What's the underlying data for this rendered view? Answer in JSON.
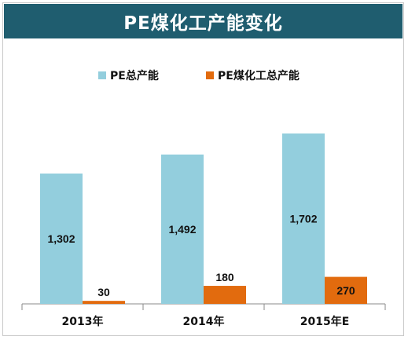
{
  "title": "PE煤化工产能变化",
  "colors": {
    "title_bg": "#1f5d6f",
    "series1": "#93cedd",
    "series2": "#e26b0e"
  },
  "chart_data": {
    "type": "bar",
    "categories": [
      "2013年",
      "2014年",
      "2015年E"
    ],
    "series": [
      {
        "name": "PE总产能",
        "values": [
          1302,
          1492,
          1702
        ],
        "labels": [
          "1,302",
          "1,492",
          "1,702"
        ]
      },
      {
        "name": "PE煤化工总产能",
        "values": [
          30,
          180,
          270
        ],
        "labels": [
          "30",
          "180",
          "270"
        ]
      }
    ],
    "ylim": [
      0,
      1950
    ],
    "legend": "top",
    "grid": false
  }
}
